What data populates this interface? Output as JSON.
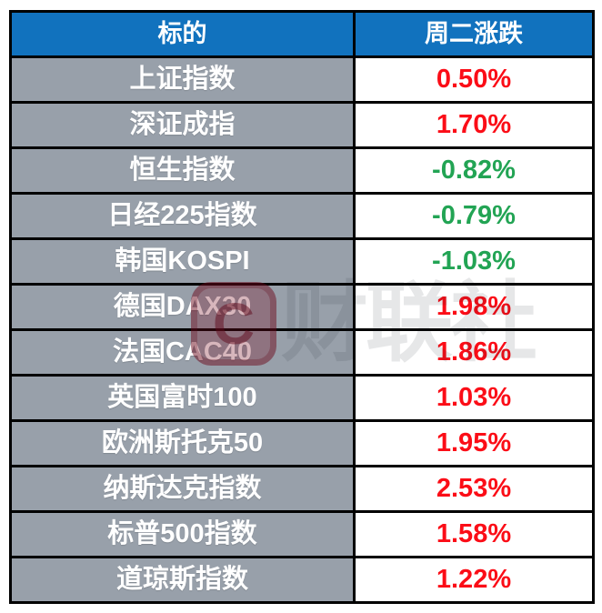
{
  "table": {
    "headers": [
      {
        "label": "标的"
      },
      {
        "label": "周二涨跌"
      }
    ],
    "rows": [
      {
        "name": "上证指数",
        "change": "0.50%",
        "direction": "up"
      },
      {
        "name": "深证成指",
        "change": "1.70%",
        "direction": "up"
      },
      {
        "name": "恒生指数",
        "change": "-0.82%",
        "direction": "down"
      },
      {
        "name": "日经225指数",
        "change": "-0.79%",
        "direction": "down"
      },
      {
        "name": "韩国KOSPI",
        "change": "-1.03%",
        "direction": "down"
      },
      {
        "name": "德国DAX30",
        "change": "1.98%",
        "direction": "up"
      },
      {
        "name": "法国CAC40",
        "change": "1.86%",
        "direction": "up"
      },
      {
        "name": "英国富时100",
        "change": "1.03%",
        "direction": "up"
      },
      {
        "name": "欧洲斯托克50",
        "change": "1.95%",
        "direction": "up"
      },
      {
        "name": "纳斯达克指数",
        "change": "2.53%",
        "direction": "up"
      },
      {
        "name": "标普500指数",
        "change": "1.58%",
        "direction": "up"
      },
      {
        "name": "道琼斯指数",
        "change": "1.22%",
        "direction": "up"
      }
    ]
  },
  "watermark": {
    "logo_letter": "C",
    "text": "财联社"
  },
  "colors": {
    "header_bg": "#1172BE",
    "header_text": "#FFFFFF",
    "label_bg": "#98A0AA",
    "label_text": "#FFFFFF",
    "up_red": "#FB0D17",
    "down_green": "#22A454",
    "border": "#000000",
    "page_bg": "#FFFFFF"
  },
  "chart_data": {
    "type": "table",
    "title": "周二涨跌",
    "columns": [
      "标的",
      "周二涨跌"
    ],
    "categories": [
      "上证指数",
      "深证成指",
      "恒生指数",
      "日经225指数",
      "韩国KOSPI",
      "德国DAX30",
      "法国CAC40",
      "英国富时100",
      "欧洲斯托克50",
      "纳斯达克指数",
      "标普500指数",
      "道琼斯指数"
    ],
    "values_pct": [
      0.5,
      1.7,
      -0.82,
      -0.79,
      -1.03,
      1.98,
      1.86,
      1.03,
      1.95,
      2.53,
      1.58,
      1.22
    ],
    "color_rule": "positive=red, negative=green"
  }
}
